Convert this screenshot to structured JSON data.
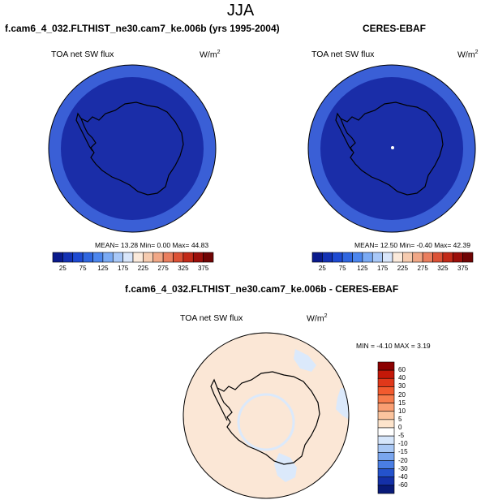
{
  "figure": {
    "season": "JJA",
    "panels": [
      {
        "title": "f.cam6_4_032.FLTHIST_ne30.cam7_ke.006b (yrs 1995-2004)",
        "variable": "TOA net SW flux",
        "units": "W/m",
        "units_exp": "2",
        "stats_text": "MEAN=  13.28  Min=   0.00  Max=  44.83",
        "colorbar_ticks": [
          "25",
          "75",
          "125",
          "175",
          "225",
          "275",
          "325",
          "375"
        ],
        "colorbar_colors": [
          "#0a1a8c",
          "#1432b4",
          "#1e4ad2",
          "#2f66e0",
          "#4c86ee",
          "#7aaaf4",
          "#a8c8f8",
          "#d8e6fb",
          "#fbeadb",
          "#f6cbaf",
          "#f1a786",
          "#ea7e5e",
          "#dc5236",
          "#c22a18",
          "#9b0f0a",
          "#700404"
        ]
      },
      {
        "title": "CERES-EBAF",
        "variable": "TOA net SW flux",
        "units": "W/m",
        "units_exp": "2",
        "stats_text": "MEAN=  12.50  Min=  -0.40  Max=  42.39",
        "colorbar_ticks": [
          "25",
          "75",
          "125",
          "175",
          "225",
          "275",
          "325",
          "375"
        ],
        "colorbar_colors": [
          "#0a1a8c",
          "#1432b4",
          "#1e4ad2",
          "#2f66e0",
          "#4c86ee",
          "#7aaaf4",
          "#a8c8f8",
          "#d8e6fb",
          "#fbeadb",
          "#f6cbaf",
          "#f1a786",
          "#ea7e5e",
          "#dc5236",
          "#c22a18",
          "#9b0f0a",
          "#700404"
        ]
      },
      {
        "title": "f.cam6_4_032.FLTHIST_ne30.cam7_ke.006b - CERES-EBAF",
        "variable": "TOA net SW flux",
        "units": "W/m",
        "units_exp": "2",
        "stats_text": "MIN =  -4.10  MAX =   3.19",
        "colorbar_ticks": [
          "60",
          "40",
          "30",
          "20",
          "15",
          "10",
          "5",
          "0",
          "-5",
          "-10",
          "-15",
          "-20",
          "-30",
          "-40",
          "-60"
        ],
        "colorbar_colors": [
          "#8b0000",
          "#c41808",
          "#e0381a",
          "#f25a2e",
          "#f77c4c",
          "#f99e72",
          "#fbc49e",
          "#fde4cc",
          "#ffffff",
          "#d6e6fb",
          "#a9c8f5",
          "#7aa6ef",
          "#4a7ee4",
          "#2452cc",
          "#1430a8",
          "#081a78"
        ]
      }
    ],
    "map_colors": {
      "ocean_outer": "#3a5fd6",
      "interior": "#1a2da8",
      "diff_background": "#fbe7d6",
      "diff_light_blue": "#dbe9fb"
    }
  }
}
